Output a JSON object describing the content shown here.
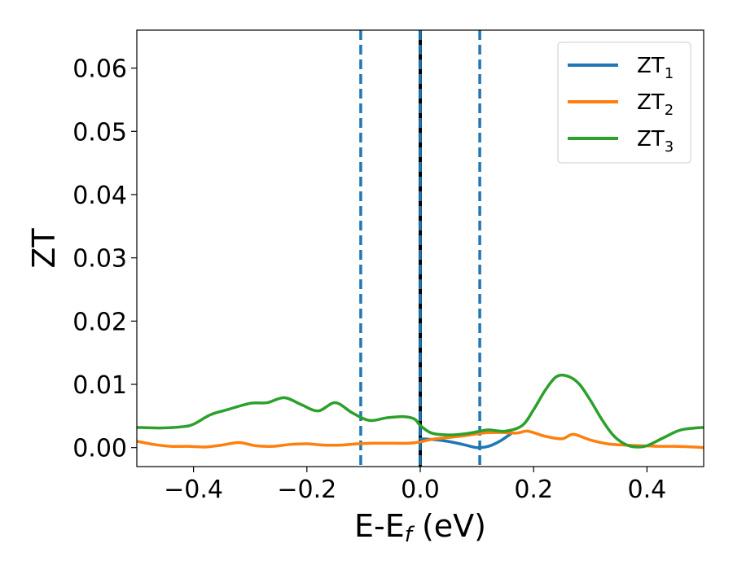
{
  "chart_data": {
    "type": "line",
    "title": "",
    "xlabel": "E-E",
    "xlabel_sub": "f",
    "xlabel_unit": " (eV)",
    "ylabel": "ZT",
    "xlim": [
      -0.5,
      0.5
    ],
    "ylim": [
      -0.003,
      0.066
    ],
    "x_ticks": [
      -0.4,
      -0.2,
      0.0,
      0.2,
      0.4
    ],
    "x_tick_labels": [
      "−0.4",
      "−0.2",
      "0.0",
      "0.2",
      "0.4"
    ],
    "y_ticks": [
      0.0,
      0.01,
      0.02,
      0.03,
      0.04,
      0.05,
      0.06
    ],
    "y_tick_labels": [
      "0.00",
      "0.01",
      "0.02",
      "0.03",
      "0.04",
      "0.05",
      "0.06"
    ],
    "grid": false,
    "legend_position": "top-right",
    "vertical_lines": [
      {
        "x": -0.105,
        "style": "dashed",
        "color": "#1f77b4"
      },
      {
        "x": 0.0,
        "style": "solid",
        "color": "#000000"
      },
      {
        "x": 0.0,
        "style": "dashed",
        "color": "#1f77b4"
      },
      {
        "x": 0.105,
        "style": "dashed",
        "color": "#1f77b4"
      }
    ],
    "series": [
      {
        "name": "ZT",
        "name_sub": "1",
        "color": "#1f77b4",
        "x": [
          0.0,
          0.02,
          0.04,
          0.06,
          0.08,
          0.1,
          0.12,
          0.14,
          0.16
        ],
        "y": [
          0.0014,
          0.0013,
          0.0011,
          0.0008,
          0.0004,
          0.0,
          0.0002,
          0.001,
          0.0022
        ]
      },
      {
        "name": "ZT",
        "name_sub": "2",
        "color": "#ff7f0e",
        "x": [
          -0.5,
          -0.47,
          -0.44,
          -0.41,
          -0.38,
          -0.35,
          -0.32,
          -0.29,
          -0.26,
          -0.23,
          -0.2,
          -0.17,
          -0.14,
          -0.11,
          -0.08,
          -0.05,
          -0.02,
          0.0,
          0.02,
          0.05,
          0.08,
          0.11,
          0.14,
          0.17,
          0.19,
          0.22,
          0.25,
          0.27,
          0.3,
          0.33,
          0.36,
          0.39,
          0.42,
          0.45,
          0.48,
          0.5
        ],
        "y": [
          0.001,
          0.0005,
          0.0002,
          0.0002,
          0.0001,
          0.0004,
          0.0008,
          0.0003,
          0.0002,
          0.0005,
          0.0006,
          0.0004,
          0.0004,
          0.0006,
          0.0007,
          0.0007,
          0.0007,
          0.0009,
          0.0013,
          0.0016,
          0.0019,
          0.0023,
          0.0024,
          0.0023,
          0.0026,
          0.0018,
          0.0014,
          0.0021,
          0.0012,
          0.0006,
          0.0004,
          0.0003,
          0.0002,
          0.0002,
          0.0001,
          0.0
        ]
      },
      {
        "name": "ZT",
        "name_sub": "3",
        "color": "#2ca02c",
        "x": [
          -0.5,
          -0.46,
          -0.42,
          -0.4,
          -0.37,
          -0.34,
          -0.3,
          -0.27,
          -0.24,
          -0.21,
          -0.18,
          -0.15,
          -0.12,
          -0.09,
          -0.06,
          -0.03,
          -0.01,
          0.0,
          0.02,
          0.05,
          0.08,
          0.1,
          0.12,
          0.15,
          0.18,
          0.2,
          0.22,
          0.24,
          0.26,
          0.28,
          0.3,
          0.32,
          0.34,
          0.36,
          0.38,
          0.4,
          0.43,
          0.46,
          0.5
        ],
        "y": [
          0.0032,
          0.0031,
          0.0033,
          0.0037,
          0.0052,
          0.006,
          0.007,
          0.0071,
          0.0079,
          0.0068,
          0.0058,
          0.0071,
          0.0055,
          0.0043,
          0.0047,
          0.0049,
          0.0045,
          0.0035,
          0.0023,
          0.002,
          0.0022,
          0.0025,
          0.0028,
          0.0026,
          0.0035,
          0.006,
          0.009,
          0.0112,
          0.0113,
          0.0101,
          0.0075,
          0.0045,
          0.002,
          0.0006,
          0.0001,
          0.0003,
          0.0016,
          0.0028,
          0.0032
        ]
      }
    ]
  }
}
